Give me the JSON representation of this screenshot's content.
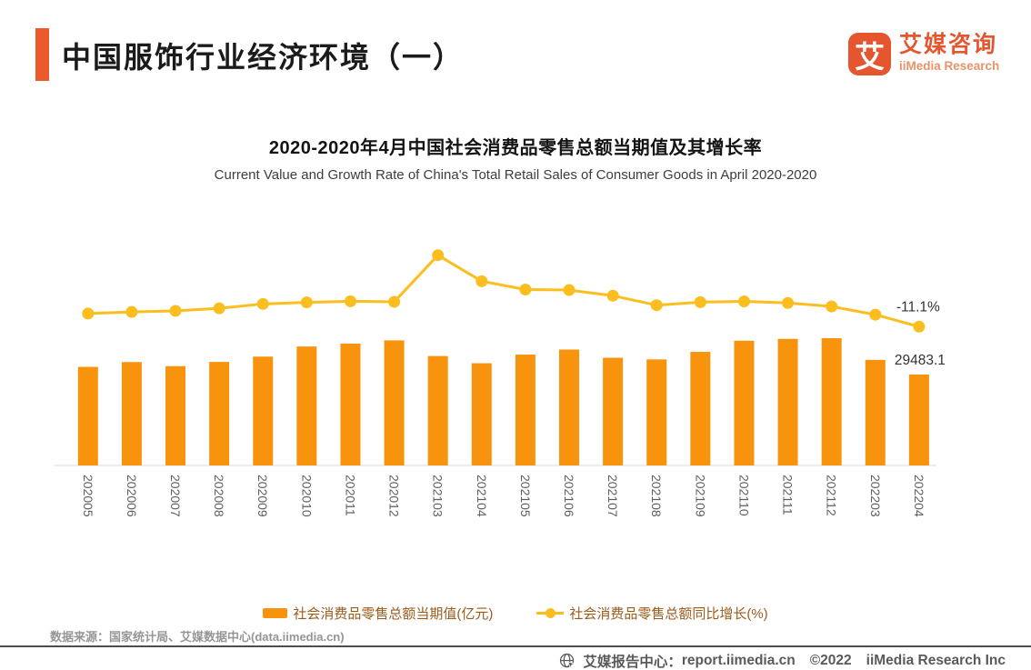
{
  "header": {
    "title": "中国服饰行业经济环境（一）",
    "accent_color": "#EC5A2B",
    "logo": {
      "glyph": "艾",
      "name_cn": "艾媒咨询",
      "name_en": "iiMedia Research"
    }
  },
  "chart_data": {
    "type": "bar+line",
    "title": "2020-2020年4月中国社会消费品零售总额当期值及其增长率",
    "subtitle": "Current Value and Growth Rate of China's Total Retail Sales of Consumer Goods in April 2020-2020",
    "categories": [
      "202005",
      "202006",
      "202007",
      "202008",
      "202009",
      "202010",
      "202011",
      "202012",
      "202103",
      "202104",
      "202105",
      "202106",
      "202107",
      "202108",
      "202109",
      "202110",
      "202111",
      "202112",
      "202203",
      "202204"
    ],
    "series": [
      {
        "name": "社会消费品零售总额当期值(亿元)",
        "type": "bar",
        "color": "#F8930E",
        "values": [
          31973,
          33526,
          32203,
          33571,
          35295,
          38576,
          39514,
          40566,
          35484,
          33153,
          35945,
          37586,
          34925,
          34395,
          36833,
          40454,
          41043,
          41269,
          34233,
          29483.1
        ]
      },
      {
        "name": "社会消费品零售总额同比增长(%)",
        "type": "line",
        "color": "#FCBE1F",
        "values": [
          -2.8,
          -1.8,
          -1.1,
          0.5,
          3.3,
          4.3,
          5.0,
          4.6,
          34.2,
          17.7,
          12.4,
          12.1,
          8.5,
          2.5,
          4.4,
          4.9,
          3.9,
          1.7,
          -3.5,
          -11.1
        ]
      }
    ],
    "annotations": [
      {
        "text": "-11.1%",
        "target": "line",
        "index": 19
      },
      {
        "text": "29483.1",
        "target": "bar",
        "index": 19
      }
    ],
    "bar_axis_range": [
      0,
      44000
    ],
    "line_axis_range": [
      -20,
      40
    ],
    "grid": false,
    "legend_position": "bottom",
    "axis_label_color": "#5f5f5f"
  },
  "source_note": "数据来源：国家统计局、艾媒数据中心(data.iimedia.cn)",
  "footer": {
    "report_center": "艾媒报告中心：",
    "url": "report.iimedia.cn",
    "copyright": "©2022",
    "company": "iiMedia Research Inc"
  }
}
